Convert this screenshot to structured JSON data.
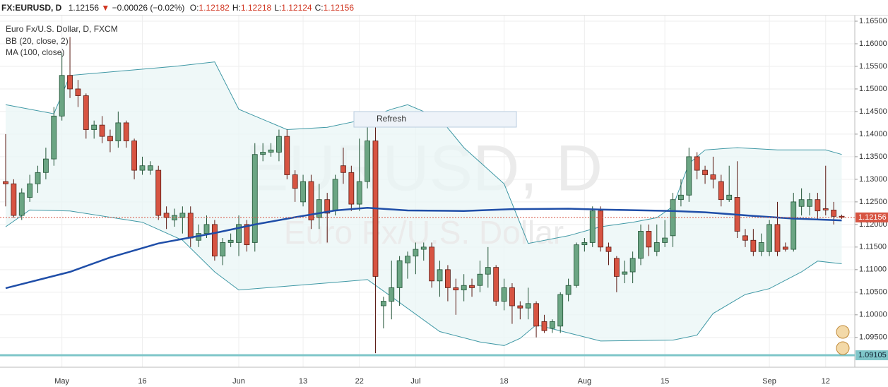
{
  "chart_data": {
    "type": "candlestick",
    "header": {
      "symbol": "FX:EURUSD, D",
      "last": "1.12156",
      "arrow": "▼",
      "change": "−0.00026 (−0.02%)",
      "ohlc": [
        {
          "label": "O:",
          "value": "1.12182"
        },
        {
          "label": "H:",
          "value": "1.12218"
        },
        {
          "label": "L:",
          "value": "1.12124"
        },
        {
          "label": "C:",
          "value": "1.12156"
        }
      ]
    },
    "instrument": "Euro Fx/U.S. Dollar, D, FXCM",
    "watermark": [
      "EURUSD, D",
      "Euro Fx/U.S. Dollar"
    ],
    "button": "Refresh",
    "categories": [
      null,
      null,
      null,
      null,
      null,
      null,
      null,
      "May",
      null,
      null,
      null,
      null,
      null,
      null,
      null,
      null,
      null,
      "16",
      null,
      null,
      null,
      null,
      null,
      null,
      null,
      null,
      null,
      null,
      null,
      "Jun",
      null,
      null,
      null,
      null,
      null,
      null,
      null,
      "13",
      null,
      null,
      null,
      null,
      null,
      null,
      "22",
      null,
      null,
      null,
      null,
      null,
      null,
      "Jul",
      null,
      null,
      null,
      null,
      null,
      null,
      null,
      null,
      null,
      null,
      "18",
      null,
      null,
      null,
      null,
      null,
      null,
      null,
      null,
      null,
      "Aug",
      null,
      null,
      null,
      null,
      null,
      null,
      null,
      null,
      null,
      "15",
      null,
      null,
      null,
      null,
      null,
      null,
      null,
      null,
      null,
      null,
      null,
      null,
      "Sep",
      null,
      null,
      null,
      null,
      null,
      null,
      "12",
      null,
      null
    ],
    "open": [
      1.1295,
      1.129,
      1.122,
      1.126,
      1.129,
      1.1315,
      1.1345,
      1.144,
      1.153,
      1.15,
      1.1485,
      1.141,
      1.142,
      1.1395,
      1.1385,
      1.1425,
      1.1385,
      1.132,
      1.132,
      1.132,
      1.1225,
      1.121,
      1.1215,
      1.1225,
      1.1165,
      1.118,
      1.12,
      1.113,
      1.116,
      1.116,
      1.12,
      1.116,
      1.1355,
      1.136,
      1.136,
      1.1395,
      1.131,
      1.125,
      1.1295,
      1.1215,
      1.1255,
      1.123,
      1.133,
      1.1315,
      1.1245,
      1.1295,
      1.1385,
      1.102,
      1.103,
      1.106,
      1.1115,
      1.113,
      1.1145,
      1.115,
      1.1075,
      1.11,
      1.106,
      1.1055,
      1.1065,
      1.1065,
      1.109,
      1.1105,
      1.103,
      1.106,
      1.102,
      1.1015,
      1.1025,
      1.0985,
      1.097,
      1.0975,
      1.1045,
      1.1065,
      1.1155,
      1.116,
      1.123,
      1.115,
      1.1125,
      1.109,
      1.1095,
      1.1125,
      1.1185,
      1.114,
      1.116,
      1.1175,
      1.1255,
      1.1265,
      1.135,
      1.132,
      1.131,
      1.1295,
      1.1255,
      1.126,
      1.1175,
      1.1165,
      1.114,
      1.114,
      1.12,
      1.115,
      1.1145,
      1.124,
      1.124,
      1.1255,
      1.1235,
      1.1232,
      1.12182
    ],
    "high": [
      1.14,
      1.13,
      1.128,
      1.131,
      1.133,
      1.137,
      1.146,
      1.158,
      1.1615,
      1.152,
      1.149,
      1.143,
      1.144,
      1.141,
      1.145,
      1.143,
      1.139,
      1.135,
      1.134,
      1.133,
      1.124,
      1.1235,
      1.124,
      1.124,
      1.12,
      1.122,
      1.121,
      1.117,
      1.118,
      1.122,
      1.121,
      1.138,
      1.138,
      1.138,
      1.141,
      1.141,
      1.132,
      1.131,
      1.131,
      1.129,
      1.127,
      1.131,
      1.137,
      1.133,
      1.139,
      1.142,
      1.1415,
      1.104,
      1.112,
      1.113,
      1.114,
      1.116,
      1.116,
      1.116,
      1.112,
      1.111,
      1.108,
      1.109,
      1.108,
      1.112,
      1.115,
      1.111,
      1.108,
      1.107,
      1.103,
      1.106,
      1.103,
      1.1,
      1.099,
      1.105,
      1.108,
      1.116,
      1.117,
      1.124,
      1.124,
      1.116,
      1.113,
      1.112,
      1.114,
      1.12,
      1.12,
      1.12,
      1.121,
      1.127,
      1.13,
      1.137,
      1.136,
      1.133,
      1.135,
      1.131,
      1.133,
      1.134,
      1.119,
      1.119,
      1.118,
      1.121,
      1.125,
      1.116,
      1.127,
      1.128,
      1.127,
      1.127,
      1.133,
      1.125,
      1.12218
    ],
    "low": [
      1.124,
      1.1215,
      1.121,
      1.125,
      1.127,
      1.13,
      1.133,
      1.143,
      1.148,
      1.146,
      1.139,
      1.139,
      1.138,
      1.136,
      1.137,
      1.137,
      1.13,
      1.131,
      1.131,
      1.121,
      1.119,
      1.1195,
      1.118,
      1.115,
      1.115,
      1.117,
      1.112,
      1.111,
      1.115,
      1.113,
      1.114,
      1.114,
      1.134,
      1.135,
      1.134,
      1.13,
      1.125,
      1.124,
      1.119,
      1.119,
      1.116,
      1.122,
      1.129,
      1.123,
      1.123,
      1.128,
      1.0915,
      1.097,
      1.099,
      1.102,
      1.108,
      1.109,
      1.112,
      1.106,
      1.104,
      1.103,
      1.1,
      1.103,
      1.104,
      1.105,
      1.106,
      1.102,
      1.101,
      1.098,
      1.099,
      1.099,
      1.095,
      1.096,
      1.096,
      1.096,
      1.103,
      1.106,
      1.114,
      1.115,
      1.114,
      1.111,
      1.105,
      1.107,
      1.107,
      1.111,
      1.113,
      1.113,
      1.115,
      1.115,
      1.124,
      1.125,
      1.13,
      1.129,
      1.128,
      1.124,
      1.125,
      1.117,
      1.115,
      1.113,
      1.113,
      1.113,
      1.113,
      1.114,
      1.114,
      1.122,
      1.122,
      1.121,
      1.122,
      1.12,
      1.12124
    ],
    "close": [
      1.129,
      1.122,
      1.127,
      1.129,
      1.1315,
      1.1345,
      1.144,
      1.153,
      1.15,
      1.1485,
      1.141,
      1.142,
      1.1395,
      1.1385,
      1.1425,
      1.1385,
      1.132,
      1.133,
      1.133,
      1.122,
      1.1215,
      1.122,
      1.1225,
      1.117,
      1.118,
      1.12,
      1.113,
      1.116,
      1.1165,
      1.12,
      1.1155,
      1.1355,
      1.136,
      1.1365,
      1.1395,
      1.131,
      1.128,
      1.1295,
      1.121,
      1.1255,
      1.1225,
      1.13,
      1.1315,
      1.1245,
      1.1295,
      1.1385,
      1.1085,
      1.103,
      1.106,
      1.112,
      1.113,
      1.1145,
      1.115,
      1.1075,
      1.11,
      1.106,
      1.1055,
      1.1065,
      1.106,
      1.109,
      1.1105,
      1.103,
      1.106,
      1.102,
      1.1015,
      1.1025,
      1.0975,
      1.0965,
      1.0985,
      1.1045,
      1.1065,
      1.1155,
      1.116,
      1.123,
      1.115,
      1.114,
      1.1085,
      1.1095,
      1.1125,
      1.1185,
      1.115,
      1.116,
      1.117,
      1.1255,
      1.1265,
      1.135,
      1.132,
      1.131,
      1.13,
      1.1255,
      1.1265,
      1.1185,
      1.1165,
      1.114,
      1.116,
      1.12,
      1.114,
      1.1145,
      1.125,
      1.1255,
      1.1255,
      1.123,
      1.1232,
      1.1218,
      1.12156
    ],
    "up_color": "#6ba583",
    "down_color": "#d75442",
    "indicators": [
      {
        "name": "BB (20, close, 2)",
        "color": "#3f98a5",
        "upper": {
          "x": [
            0,
            6,
            8,
            21,
            26,
            29,
            35,
            40,
            44,
            48,
            50,
            54,
            57,
            62,
            65,
            70,
            74,
            78,
            81,
            83,
            85,
            87,
            91,
            96,
            102,
            104
          ],
          "values": [
            1.1465,
            1.1445,
            1.153,
            1.155,
            1.156,
            1.1455,
            1.141,
            1.1415,
            1.143,
            1.1455,
            1.1465,
            1.1435,
            1.137,
            1.129,
            1.1158,
            1.1175,
            1.1195,
            1.1205,
            1.1215,
            1.124,
            1.1335,
            1.1365,
            1.137,
            1.1365,
            1.1365,
            1.1355
          ]
        },
        "lower": {
          "x": [
            0,
            3,
            8,
            17,
            22,
            26,
            29,
            34,
            41,
            45,
            48,
            54,
            59,
            62,
            64,
            66,
            70,
            74,
            83,
            86,
            88,
            92,
            95,
            99,
            101,
            104
          ],
          "values": [
            1.1195,
            1.1232,
            1.123,
            1.1205,
            1.1165,
            1.1095,
            1.1055,
            1.1062,
            1.1072,
            1.1078,
            1.104,
            1.0963,
            1.094,
            1.0932,
            1.0948,
            1.0978,
            1.096,
            1.0942,
            1.0944,
            1.0955,
            1.1003,
            1.1045,
            1.1058,
            1.1095,
            1.1119,
            1.1113
          ]
        }
      },
      {
        "name": "MA (100, close)",
        "color": "#1f4ea8",
        "x": [
          0,
          8,
          13,
          19,
          26,
          31,
          36,
          41,
          45,
          50,
          57,
          63,
          70,
          74,
          83,
          87,
          93,
          98,
          104
        ],
        "values": [
          1.1059,
          1.1095,
          1.1127,
          1.1158,
          1.1181,
          1.12,
          1.1216,
          1.1231,
          1.1237,
          1.1231,
          1.123,
          1.1234,
          1.1235,
          1.1233,
          1.123,
          1.1227,
          1.1219,
          1.1213,
          1.1209
        ]
      }
    ],
    "last_price": 1.12156,
    "hline": 1.09105,
    "hline_color": "#7fc6c9",
    "ylim": [
      1.0884,
      1.16625
    ],
    "yticks": [
      {
        "value": 1.095,
        "label": "1.09500"
      },
      {
        "value": 1.1,
        "label": "1.10000"
      },
      {
        "value": 1.105,
        "label": "1.10500"
      },
      {
        "value": 1.11,
        "label": "1.11000"
      },
      {
        "value": 1.115,
        "label": "1.11500"
      },
      {
        "value": 1.12,
        "label": "1.12000"
      },
      {
        "value": 1.125,
        "label": "1.12500"
      },
      {
        "value": 1.13,
        "label": "1.13000"
      },
      {
        "value": 1.135,
        "label": "1.13500"
      },
      {
        "value": 1.14,
        "label": "1.14000"
      },
      {
        "value": 1.145,
        "label": "1.14500"
      },
      {
        "value": 1.15,
        "label": "1.15000"
      },
      {
        "value": 1.155,
        "label": "1.15500"
      },
      {
        "value": 1.16,
        "label": "1.16000"
      },
      {
        "value": 1.165,
        "label": "1.16500"
      }
    ],
    "grid": true
  }
}
